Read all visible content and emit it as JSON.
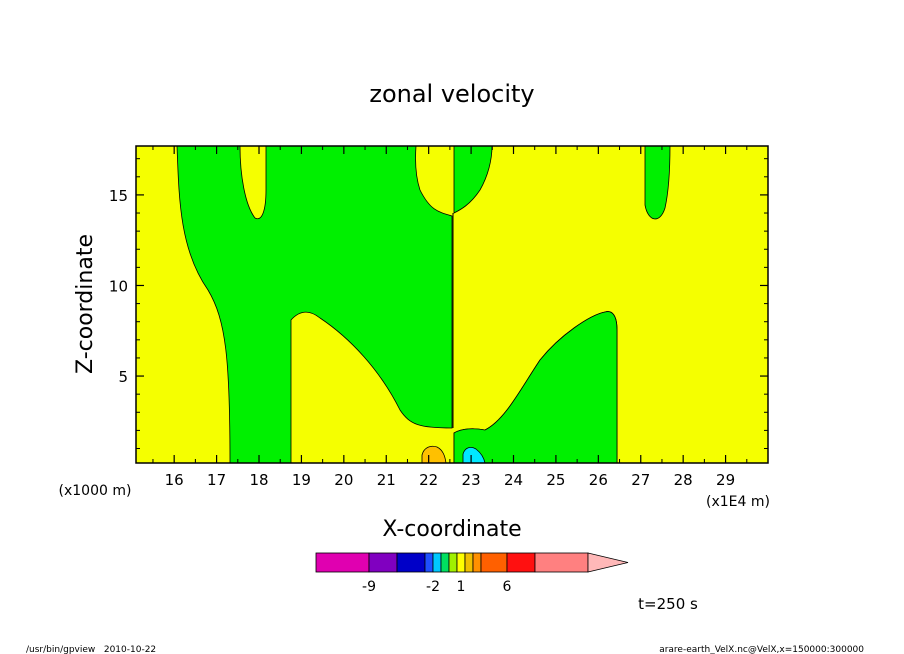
{
  "chart_data": {
    "type": "contour",
    "title": "zonal velocity",
    "xlabel": "X-coordinate",
    "ylabel": "Z-coordinate",
    "x_scale_label": "(x1E4 m)",
    "y_scale_label": "(x1000 m)",
    "xlim": [
      15.1,
      30.0
    ],
    "ylim": [
      0.2,
      17.7
    ],
    "x_ticks": [
      16,
      17,
      18,
      19,
      20,
      21,
      22,
      23,
      24,
      25,
      26,
      27,
      28,
      29
    ],
    "y_ticks": [
      5,
      10,
      15
    ],
    "time_label": "t=250 s",
    "colorbar": {
      "tick_labels": [
        "-9",
        "-2",
        "1",
        "6"
      ],
      "colors": [
        "#e000b0",
        "#8000c0",
        "#0000c8",
        "#1e50ff",
        "#00c8ff",
        "#00e060",
        "#a0f000",
        "#ffff00",
        "#f0c000",
        "#ff9000",
        "#ff6000",
        "#ff1010",
        "#ff8080",
        "#ffb8b8"
      ]
    },
    "field_colors": {
      "yellow": "#f5ff00",
      "green": "#00f000",
      "orange": "#ffc000",
      "cyan": "#00e8ff"
    },
    "annotations": {
      "left": "/usr/bin/gpview   2010-10-22",
      "right": "arare-earth_VelX.nc@VelX,x=150000:300000"
    }
  }
}
